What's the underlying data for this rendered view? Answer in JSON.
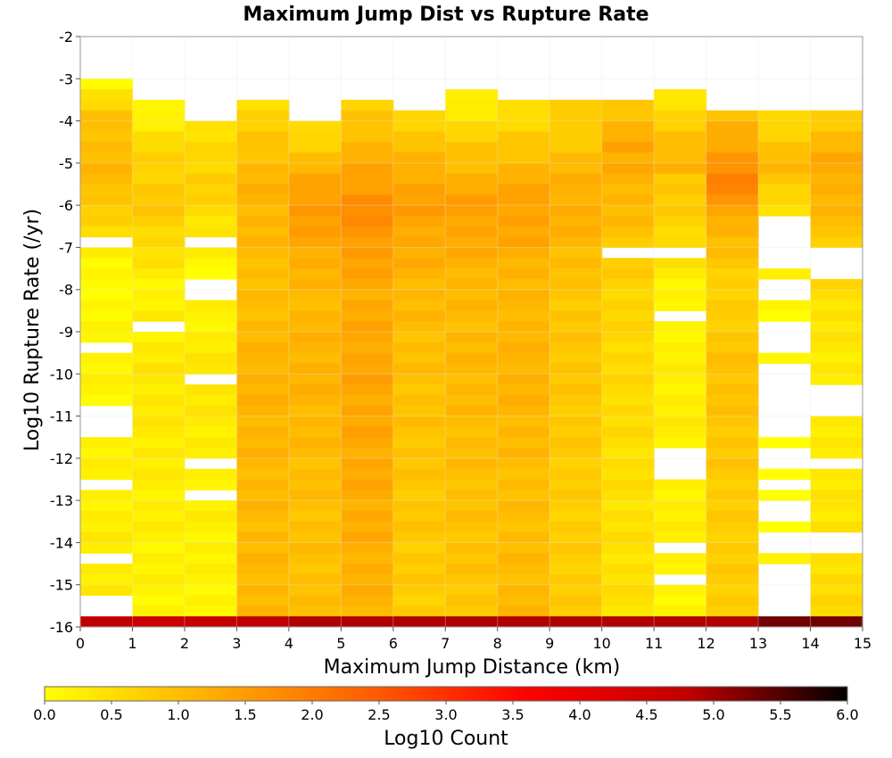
{
  "chart_data": {
    "type": "heatmap",
    "title": "Maximum Jump Dist vs Rupture Rate",
    "xlabel": "Maximum Jump Distance (km)",
    "ylabel": "Log10 Rupture Rate (/yr)",
    "xlim": [
      0,
      15
    ],
    "ylim": [
      -16,
      -2
    ],
    "x_ticks": [
      "0",
      "1",
      "2",
      "3",
      "4",
      "5",
      "6",
      "7",
      "8",
      "9",
      "10",
      "11",
      "12",
      "13",
      "14",
      "15"
    ],
    "y_ticks": [
      "-2",
      "-3",
      "-4",
      "-5",
      "-6",
      "-7",
      "-8",
      "-9",
      "-10",
      "-11",
      "-12",
      "-13",
      "-14",
      "-15",
      "-16"
    ],
    "x_bin_width": 1,
    "y_bin_height": 0.25,
    "grid": true,
    "colorbar": {
      "label": "Log10 Count",
      "range": [
        0.0,
        6.0
      ],
      "ticks": [
        "0.0",
        "0.5",
        "1.0",
        "1.5",
        "2.0",
        "2.5",
        "3.0",
        "3.5",
        "4.0",
        "4.5",
        "5.0",
        "5.5",
        "6.0"
      ],
      "colors": [
        "#ffff00",
        "#ffb000",
        "#ff6000",
        "#ff0000",
        "#c00000",
        "#000000"
      ]
    },
    "columns": [
      {
        "x": 0,
        "top": -3.0,
        "profile": [
          [
            -3.0,
            0.3
          ],
          [
            -4.0,
            1.2
          ],
          [
            -5.5,
            1.3
          ],
          [
            -7.5,
            0.3
          ],
          [
            -10.0,
            0.4
          ],
          [
            -12.5,
            0.5
          ],
          [
            -15.5,
            0.5
          ]
        ],
        "empty_bands": [
          [
            -7.0,
            -6.75
          ],
          [
            -9.5,
            -9.25
          ],
          [
            -11.5,
            -10.75
          ],
          [
            -12.75,
            -12.5
          ],
          [
            -14.5,
            -14.25
          ],
          [
            -15.75,
            -15.25
          ]
        ],
        "bottom_value": 4.8
      },
      {
        "x": 1,
        "top": -3.5,
        "profile": [
          [
            -3.5,
            0.2
          ],
          [
            -4.5,
            0.8
          ],
          [
            -6.0,
            1.1
          ],
          [
            -8.0,
            0.4
          ],
          [
            -10.0,
            0.6
          ],
          [
            -13.0,
            0.5
          ],
          [
            -15.5,
            0.4
          ]
        ],
        "empty_bands": [
          [
            -9.0,
            -8.75
          ]
        ],
        "bottom_value": 4.6
      },
      {
        "x": 2,
        "top": -4.0,
        "profile": [
          [
            -4.0,
            0.6
          ],
          [
            -5.5,
            1.0
          ],
          [
            -7.5,
            0.3
          ],
          [
            -10.0,
            0.6
          ],
          [
            -12.5,
            0.5
          ],
          [
            -15.5,
            0.4
          ]
        ],
        "empty_bands": [
          [
            -7.0,
            -6.75
          ],
          [
            -8.25,
            -7.75
          ],
          [
            -10.25,
            -10.0
          ],
          [
            -12.25,
            -12.0
          ],
          [
            -13.0,
            -12.75
          ]
        ],
        "bottom_value": 4.7
      },
      {
        "x": 3,
        "top": -3.5,
        "profile": [
          [
            -3.5,
            0.8
          ],
          [
            -5.5,
            1.4
          ],
          [
            -8.0,
            1.2
          ],
          [
            -10.0,
            1.4
          ],
          [
            -13.0,
            1.3
          ],
          [
            -15.5,
            1.3
          ]
        ],
        "empty_bands": [],
        "bottom_value": 4.8
      },
      {
        "x": 4,
        "top": -4.0,
        "profile": [
          [
            -4.0,
            0.6
          ],
          [
            -5.5,
            1.6
          ],
          [
            -6.0,
            1.8
          ],
          [
            -8.0,
            1.3
          ],
          [
            -10.0,
            1.4
          ],
          [
            -13.0,
            1.2
          ],
          [
            -15.5,
            1.2
          ]
        ],
        "empty_bands": [],
        "bottom_value": 4.9
      },
      {
        "x": 5,
        "top": -3.5,
        "profile": [
          [
            -3.5,
            0.9
          ],
          [
            -5.5,
            1.7
          ],
          [
            -6.0,
            2.0
          ],
          [
            -8.0,
            1.5
          ],
          [
            -10.0,
            1.6
          ],
          [
            -13.0,
            1.5
          ],
          [
            -15.5,
            1.4
          ]
        ],
        "empty_bands": [],
        "bottom_value": 4.9
      },
      {
        "x": 6,
        "top": -3.75,
        "profile": [
          [
            -3.75,
            0.8
          ],
          [
            -5.5,
            1.6
          ],
          [
            -6.0,
            1.7
          ],
          [
            -8.0,
            1.3
          ],
          [
            -10.0,
            1.2
          ],
          [
            -13.0,
            1.1
          ],
          [
            -15.5,
            1.0
          ]
        ],
        "empty_bands": [],
        "bottom_value": 4.9
      },
      {
        "x": 7,
        "top": -3.25,
        "profile": [
          [
            -3.25,
            0.3
          ],
          [
            -4.5,
            1.0
          ],
          [
            -6.0,
            1.7
          ],
          [
            -8.0,
            1.3
          ],
          [
            -10.0,
            1.3
          ],
          [
            -13.0,
            1.2
          ],
          [
            -15.5,
            1.1
          ]
        ],
        "empty_bands": [],
        "bottom_value": 4.9
      },
      {
        "x": 8,
        "top": -3.5,
        "profile": [
          [
            -3.5,
            0.5
          ],
          [
            -5.0,
            1.3
          ],
          [
            -6.0,
            1.7
          ],
          [
            -8.0,
            1.3
          ],
          [
            -10.0,
            1.4
          ],
          [
            -13.0,
            1.2
          ],
          [
            -15.5,
            1.3
          ]
        ],
        "empty_bands": [],
        "bottom_value": 4.9
      },
      {
        "x": 9,
        "top": -3.5,
        "profile": [
          [
            -3.5,
            0.6
          ],
          [
            -5.0,
            1.3
          ],
          [
            -6.0,
            1.5
          ],
          [
            -8.0,
            1.1
          ],
          [
            -10.0,
            1.1
          ],
          [
            -13.0,
            1.0
          ],
          [
            -15.5,
            1.0
          ]
        ],
        "empty_bands": [],
        "bottom_value": 4.9
      },
      {
        "x": 10,
        "top": -3.5,
        "profile": [
          [
            -3.5,
            0.8
          ],
          [
            -5.0,
            1.5
          ],
          [
            -6.0,
            1.3
          ],
          [
            -8.0,
            0.9
          ],
          [
            -10.0,
            0.8
          ],
          [
            -13.0,
            0.7
          ],
          [
            -15.5,
            0.7
          ]
        ],
        "empty_bands": [
          [
            -7.25,
            -7.0
          ]
        ],
        "bottom_value": 4.9
      },
      {
        "x": 11,
        "top": -3.25,
        "profile": [
          [
            -3.25,
            0.3
          ],
          [
            -5.0,
            1.2
          ],
          [
            -6.5,
            0.9
          ],
          [
            -8.0,
            0.4
          ],
          [
            -10.5,
            0.5
          ],
          [
            -13.0,
            0.5
          ],
          [
            -15.5,
            0.4
          ]
        ],
        "empty_bands": [
          [
            -7.25,
            -7.0
          ],
          [
            -8.75,
            -8.5
          ],
          [
            -12.5,
            -11.75
          ],
          [
            -14.25,
            -14.0
          ],
          [
            -15.0,
            -14.75
          ]
        ],
        "bottom_value": 4.9
      },
      {
        "x": 12,
        "top": -3.75,
        "profile": [
          [
            -3.75,
            0.9
          ],
          [
            -5.5,
            1.9
          ],
          [
            -7.0,
            1.2
          ],
          [
            -8.0,
            0.9
          ],
          [
            -10.0,
            1.2
          ],
          [
            -13.0,
            1.0
          ],
          [
            -15.5,
            1.0
          ]
        ],
        "empty_bands": [],
        "bottom_value": 4.9
      },
      {
        "x": 13,
        "top": -3.75,
        "profile": [
          [
            -3.75,
            0.4
          ],
          [
            -5.0,
            1.1
          ],
          [
            -6.0,
            0.5
          ],
          [
            -8.5,
            0.4
          ],
          [
            -12.0,
            0.3
          ],
          [
            -14.0,
            0.3
          ]
        ],
        "empty_bands": [
          [
            -7.5,
            -6.25
          ],
          [
            -8.25,
            -7.75
          ],
          [
            -9.5,
            -8.75
          ],
          [
            -11.5,
            -9.75
          ],
          [
            -12.25,
            -11.75
          ],
          [
            -12.75,
            -12.5
          ],
          [
            -13.5,
            -13.0
          ],
          [
            -14.25,
            -13.75
          ],
          [
            -16.0,
            -14.5
          ]
        ],
        "bottom_value": 5.3
      },
      {
        "x": 14,
        "top": -3.75,
        "profile": [
          [
            -3.75,
            0.7
          ],
          [
            -5.0,
            1.3
          ],
          [
            -6.5,
            1.0
          ],
          [
            -9.0,
            0.6
          ],
          [
            -12.0,
            0.5
          ],
          [
            -14.0,
            0.7
          ],
          [
            -15.5,
            0.8
          ]
        ],
        "empty_bands": [
          [
            -7.75,
            -7.0
          ],
          [
            -11.0,
            -10.25
          ],
          [
            -12.25,
            -12.0
          ],
          [
            -14.25,
            -13.75
          ]
        ],
        "bottom_value": 5.3
      }
    ]
  }
}
